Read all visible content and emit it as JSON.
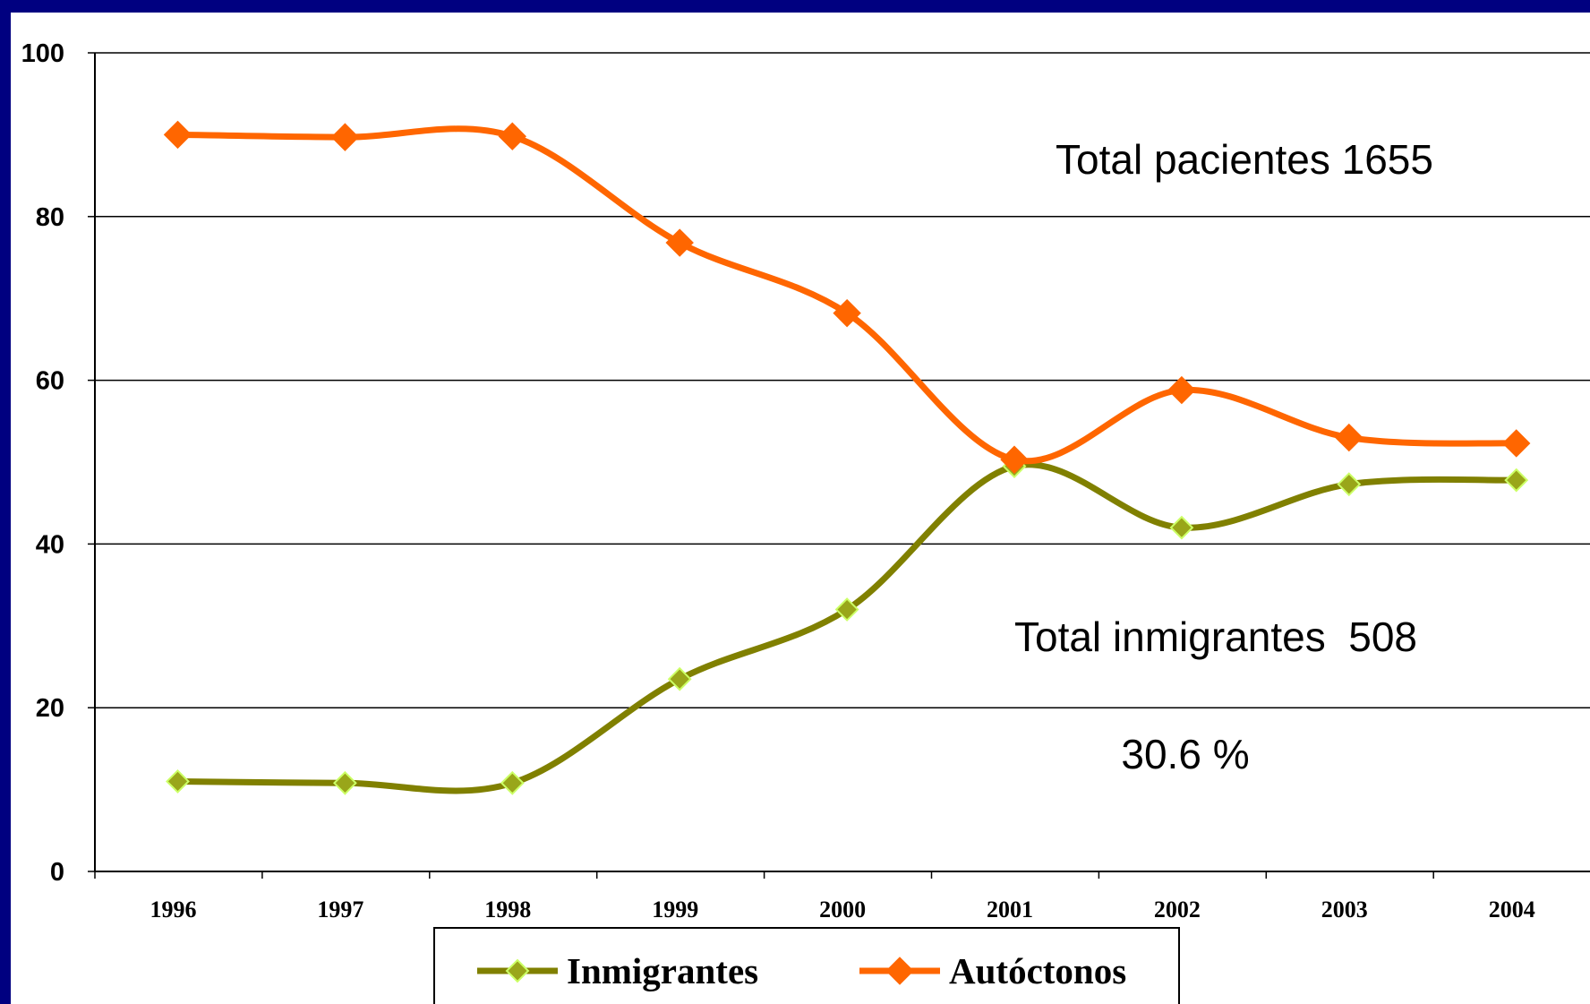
{
  "chart_data": {
    "type": "line",
    "categories": [
      "1996",
      "1997",
      "1998",
      "1999",
      "2000",
      "2001",
      "2002",
      "2003",
      "2004"
    ],
    "ylim": [
      0,
      100
    ],
    "yticks": [
      "0",
      "20",
      "40",
      "60",
      "80",
      "100"
    ],
    "grid": true,
    "legend_position": "bottom",
    "series": [
      {
        "name": "Inmigrantes",
        "values": [
          11,
          10.8,
          10.8,
          23.5,
          32,
          49.5,
          42,
          47.3,
          47.8
        ],
        "color": "#808000",
        "marker_color": "#99a61a",
        "marker": "diamond"
      },
      {
        "name": "Autóctonos",
        "values": [
          90,
          89.7,
          89.8,
          76.8,
          68.2,
          50.3,
          58.8,
          53,
          52.3
        ],
        "color": "#ff6600",
        "marker_color": "#ff6600",
        "marker": "diamond"
      }
    ],
    "annotations": [
      "Total pacientes 1655",
      "Total inmigrantes  508",
      "30.6 %"
    ]
  },
  "colors": {
    "background_frame": "#000080",
    "plot_area": "#ffffff",
    "grid": "#000000"
  }
}
